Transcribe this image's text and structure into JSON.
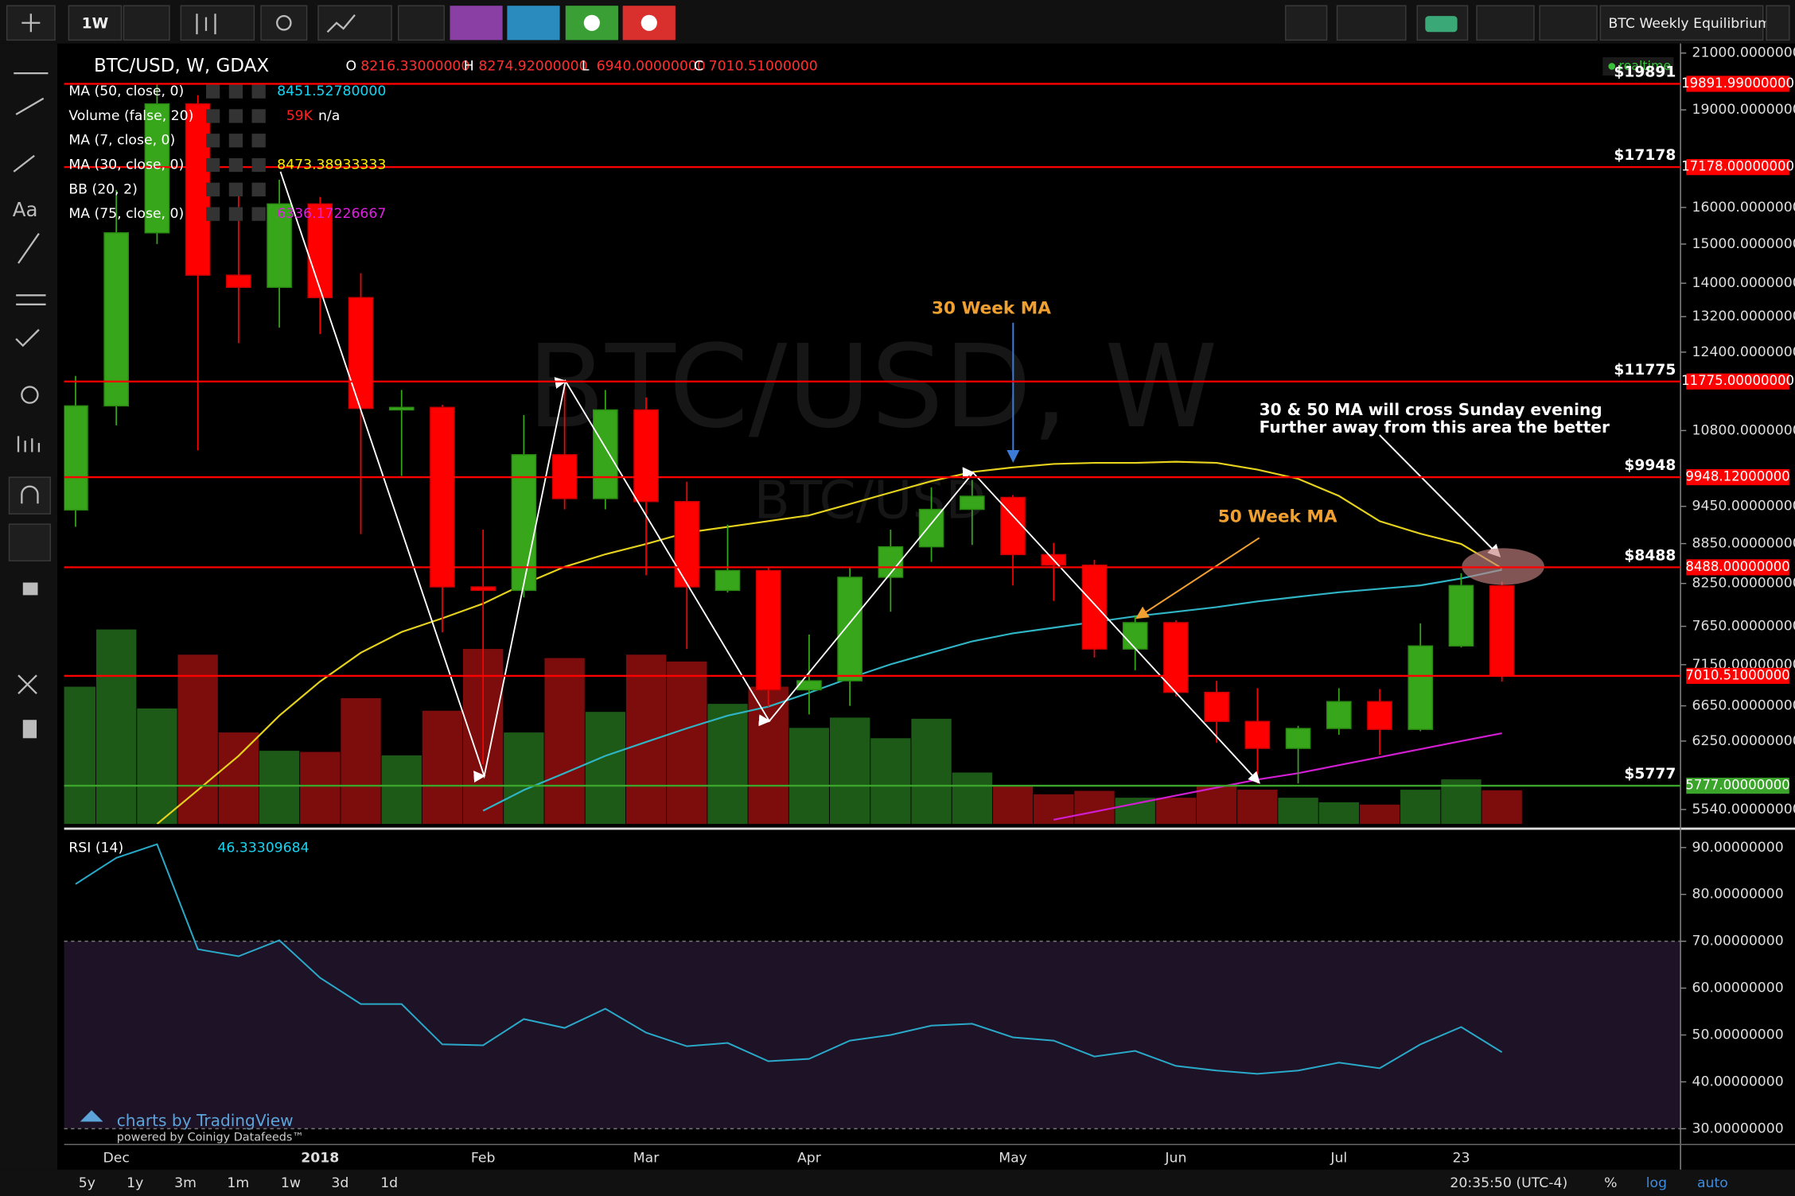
{
  "toolbar": {
    "interval": "1W",
    "layout_name": "BTC Weekly Equilibrium",
    "text_tool": "Aa"
  },
  "header": {
    "symbol": "BTC/USD, W, GDAX",
    "status": "realtime",
    "ohlc": [
      {
        "key": "O",
        "label": "8216.33000000"
      },
      {
        "key": "H",
        "label": "8274.92000000"
      },
      {
        "key": "L",
        "label": "6940.00000000"
      },
      {
        "key": "C",
        "label": "7010.51000000"
      }
    ]
  },
  "watermark": {
    "main": "BTC/USD, W",
    "sub": "BTC/USD"
  },
  "annotations": {
    "ma30": "30 Week MA",
    "ma50": "50 Week MA",
    "cross_line1": "30 & 50 MA will cross Sunday evening",
    "cross_line2": "Further away from this area the better"
  },
  "footer": {
    "ranges": [
      "5y",
      "1y",
      "3m",
      "1m",
      "1w",
      "3d",
      "1d"
    ],
    "clock": "20:35:50 (UTC-4)",
    "modes": [
      "%",
      "log",
      "auto"
    ],
    "branding": "charts by TradingView",
    "datafeed": "powered by Coinigy Datafeeds™"
  },
  "chart_data": [
    {
      "type": "candlestick",
      "log_scale": true,
      "categories": [
        null,
        "Dec",
        null,
        null,
        null,
        null,
        "2018",
        null,
        null,
        null,
        "Feb",
        null,
        null,
        null,
        "Mar",
        null,
        null,
        null,
        "Apr",
        null,
        null,
        null,
        null,
        "May",
        null,
        null,
        null,
        "Jun",
        null,
        null,
        null,
        "Jul",
        null,
        null,
        "23",
        null
      ],
      "ylim": [
        5400,
        21400
      ],
      "yticks": [
        {
          "value": 21000,
          "label": "21000.00000000"
        },
        {
          "value": 19000,
          "label": "19000.00000000"
        },
        {
          "value": 16000,
          "label": "16000.00000000"
        },
        {
          "value": 15000,
          "label": "15000.00000000"
        },
        {
          "value": 14000,
          "label": "14000.00000000"
        },
        {
          "value": 13200,
          "label": "13200.00000000"
        },
        {
          "value": 12400,
          "label": "12400.00000000"
        },
        {
          "value": 10800,
          "label": "10800.00000000"
        },
        {
          "value": 9450,
          "label": "9450.00000000"
        },
        {
          "value": 8850,
          "label": "8850.00000000"
        },
        {
          "value": 8250,
          "label": "8250.00000000"
        },
        {
          "value": 7650,
          "label": "7650.00000000"
        },
        {
          "value": 7150,
          "label": "7150.00000000"
        },
        {
          "value": 6650,
          "label": "6650.00000000"
        },
        {
          "value": 6250,
          "label": "6250.00000000"
        },
        {
          "value": 5540,
          "label": "5540.00000000"
        }
      ],
      "up_color": "#37a61b",
      "down_color": "#ff0000",
      "open": [
        9390,
        11280,
        15300,
        19200,
        14200,
        13900,
        16100,
        13650,
        11200,
        11250,
        8200,
        8150,
        10350,
        9580,
        11200,
        9530,
        8150,
        8440,
        6840,
        6950,
        8340,
        8800,
        9400,
        9600,
        8680,
        8520,
        7350,
        7700,
        6810,
        6470,
        6170,
        6390,
        6700,
        6380,
        7390,
        8216.33
      ],
      "high": [
        11890,
        16500,
        19891.99,
        19500,
        16500,
        16800,
        16300,
        14250,
        11600,
        11300,
        9070,
        11100,
        11700,
        11600,
        11450,
        9870,
        9150,
        8480,
        7540,
        8480,
        9070,
        9770,
        9900,
        9640,
        8860,
        8600,
        7800,
        7730,
        6950,
        6860,
        6420,
        6860,
        6850,
        7690,
        8400,
        8274.92
      ],
      "low": [
        9115,
        10900,
        15000,
        10430,
        12600,
        12950,
        12800,
        9000,
        9970,
        7570,
        6000,
        8050,
        9400,
        9400,
        8370,
        7350,
        8120,
        6640,
        6550,
        6650,
        7850,
        8570,
        8830,
        8220,
        8000,
        7240,
        7080,
        6760,
        6230,
        5800,
        5800,
        6320,
        6100,
        6360,
        7370,
        6940
      ],
      "close": [
        11280,
        15300,
        19200,
        14200,
        13900,
        16100,
        13650,
        11230,
        11250,
        8200,
        8150,
        10350,
        9580,
        11200,
        9530,
        8200,
        8440,
        6840,
        6950,
        8340,
        8800,
        9400,
        9620,
        8680,
        8520,
        7350,
        7700,
        6810,
        6470,
        6170,
        6390,
        6700,
        6380,
        7390,
        8220,
        7010.51
      ],
      "indicators": [
        {
          "kind": "ma",
          "name": "MA (50, close, 0)",
          "color": "#2fb5c6",
          "label_color": "#19d3f0",
          "last_label": "8451.52780000",
          "values": [
            null,
            null,
            null,
            null,
            null,
            null,
            null,
            null,
            null,
            null,
            5528,
            5733,
            5906,
            6089,
            6240,
            6392,
            6536,
            6641,
            6804,
            6984,
            7155,
            7302,
            7450,
            7556,
            7631,
            7708,
            7786,
            7849,
            7913,
            7993,
            8058,
            8123,
            8172,
            8222,
            8323,
            8451.5278
          ]
        },
        {
          "kind": "volume",
          "name": "Volume (false, 20)",
          "last_label": "59K",
          "label_color": "#ff2020",
          "extra": "n/a",
          "up_color": "#1d5a17",
          "down_color": "#7d0d0d",
          "values": [
            240000,
            340000,
            202000,
            296000,
            160000,
            128000,
            126000,
            220000,
            120000,
            198000,
            306000,
            160000,
            290000,
            196000,
            296000,
            284000,
            210000,
            240000,
            168000,
            186000,
            150000,
            184000,
            90000,
            68000,
            52000,
            58000,
            46000,
            46000,
            68000,
            60000,
            46000,
            38000,
            34000,
            60000,
            78000,
            59000
          ]
        },
        {
          "kind": "ma",
          "name": "MA (7, close, 0)"
        },
        {
          "kind": "ma",
          "name": "MA (30, close, 0)",
          "color": "#e6d21c",
          "label_color": "#ffee00",
          "last_label": "8473.38933333",
          "values": [
            null,
            null,
            5400,
            5733,
            6089,
            6536,
            6942,
            7302,
            7574,
            7759,
            7962,
            8241,
            8495,
            8685,
            8844,
            9023,
            9115,
            9207,
            9301,
            9489,
            9683,
            9879,
            10040,
            10121,
            10183,
            10202,
            10202,
            10223,
            10202,
            10081,
            9920,
            9625,
            9207,
            9006,
            8844,
            8473.38933333
          ]
        },
        {
          "kind": "bb",
          "name": "BB (20, 2)"
        },
        {
          "kind": "ma",
          "name": "MA (75, close, 0)",
          "color": "#d21ed2",
          "label_color": "#e020e0",
          "last_label": "6336.17226667",
          "values": [
            null,
            null,
            null,
            null,
            null,
            null,
            null,
            null,
            null,
            null,
            null,
            null,
            null,
            null,
            null,
            null,
            null,
            null,
            null,
            null,
            null,
            null,
            null,
            null,
            5441,
            5518,
            5598,
            5678,
            5758,
            5840,
            5906,
            5990,
            6075,
            6162,
            6250,
            6336.17226667
          ]
        }
      ],
      "levels": [
        {
          "value": 19891.99,
          "label": "19891.99000000",
          "tag": "$19891",
          "color": "#ff0000"
        },
        {
          "value": 17178,
          "label": "17178.00000000",
          "tag": "$17178",
          "color": "#ff0000"
        },
        {
          "value": 11775,
          "label": "11775.00000000",
          "tag": "$11775",
          "color": "#ff0000"
        },
        {
          "value": 9948.12,
          "label": "9948.12000000",
          "tag": "$9948",
          "color": "#ff0000"
        },
        {
          "value": 8488,
          "label": "8488.00000000",
          "tag": "$8488",
          "color": "#ff0000"
        },
        {
          "value": 7010.51,
          "label": "7010.51000000",
          "color": "#ff0000"
        },
        {
          "value": 5777,
          "label": "5777.00000000",
          "tag": "$5777",
          "color": "#3aa52a"
        }
      ]
    },
    {
      "type": "line",
      "title": "RSI (14)",
      "last_label": "46.33309684",
      "color": "#2aa8c8",
      "label_color": "#19d3f0",
      "ylim": [
        26.8,
        93.4
      ],
      "yticks": [
        {
          "value": 90,
          "label": "90.00000000"
        },
        {
          "value": 80,
          "label": "80.00000000"
        },
        {
          "value": 70,
          "label": "70.00000000"
        },
        {
          "value": 60,
          "label": "60.00000000"
        },
        {
          "value": 50,
          "label": "50.00000000"
        },
        {
          "value": 40,
          "label": "40.00000000"
        },
        {
          "value": 30,
          "label": "30.00000000"
        }
      ],
      "bands": [
        30,
        70
      ],
      "values": [
        82.2,
        87.8,
        90.7,
        68.3,
        66.8,
        70.2,
        62.2,
        56.6,
        56.6,
        48.0,
        47.8,
        53.4,
        51.5,
        55.6,
        50.5,
        47.6,
        48.3,
        44.4,
        44.9,
        48.8,
        50.0,
        52.0,
        52.4,
        49.5,
        48.8,
        45.4,
        46.6,
        43.4,
        42.4,
        41.7,
        42.4,
        44.1,
        42.9,
        48.0,
        51.7,
        46.33309684
      ]
    }
  ]
}
